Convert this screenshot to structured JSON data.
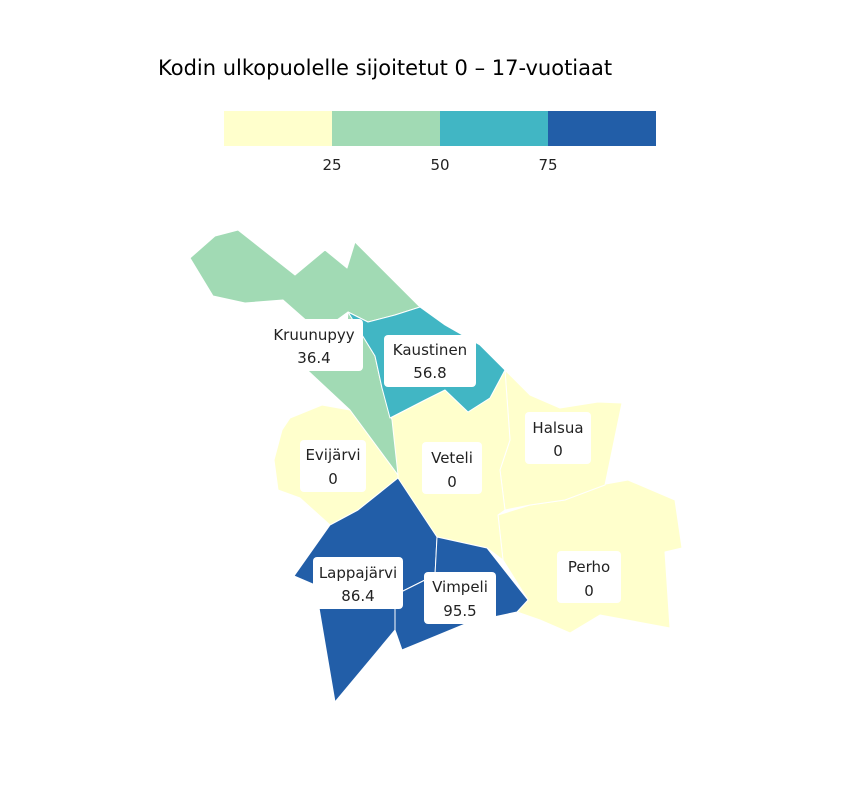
{
  "title": "Kodin ulkopuolelle sijoitetut 0 – 17-vuotiaat",
  "legend": {
    "ticks": [
      "25",
      "50",
      "75"
    ],
    "colors": [
      "#ffffcc",
      "#a1dab4",
      "#41b6c4",
      "#225ea8"
    ]
  },
  "regions": [
    {
      "name": "Kruunupyy",
      "value": "36.4",
      "color": "#a1dab4"
    },
    {
      "name": "Kaustinen",
      "value": "56.8",
      "color": "#41b6c4"
    },
    {
      "name": "Halsua",
      "value": "0",
      "color": "#ffffcc"
    },
    {
      "name": "Evijärvi",
      "value": "0",
      "color": "#ffffcc"
    },
    {
      "name": "Veteli",
      "value": "0",
      "color": "#ffffcc"
    },
    {
      "name": "Lappajärvi",
      "value": "86.4",
      "color": "#225ea8"
    },
    {
      "name": "Vimpeli",
      "value": "95.5",
      "color": "#225ea8"
    },
    {
      "name": "Perho",
      "value": "0",
      "color": "#ffffcc"
    }
  ]
}
